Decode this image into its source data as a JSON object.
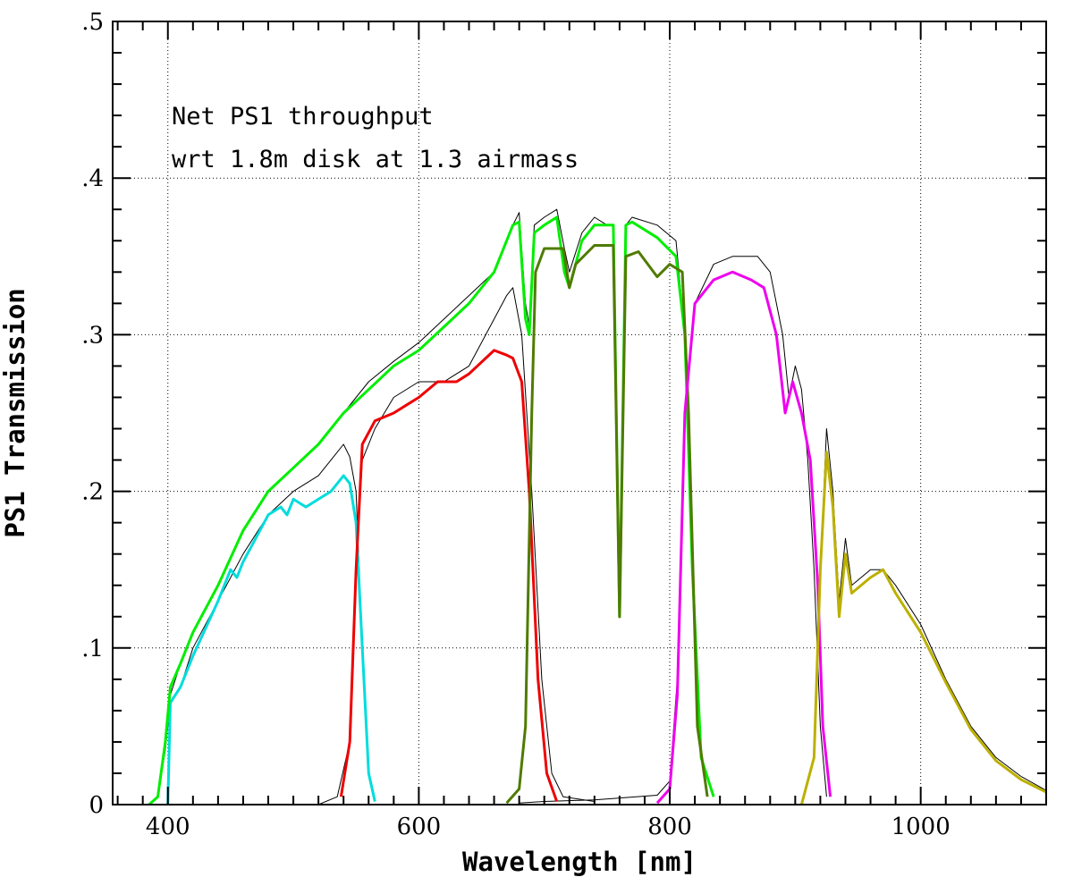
{
  "chart_data": {
    "type": "line",
    "xlabel": "Wavelength [nm]",
    "ylabel": "PS1 Transmission",
    "xlim": [
      356,
      1100
    ],
    "ylim": [
      0,
      0.5
    ],
    "x_ticks": [
      {
        "value": 400,
        "label": "400"
      },
      {
        "value": 600,
        "label": "600"
      },
      {
        "value": 800,
        "label": "800"
      },
      {
        "value": 1000,
        "label": "1000"
      }
    ],
    "y_ticks": [
      {
        "value": 0,
        "label": "0"
      },
      {
        "value": 0.1,
        "label": ".1"
      },
      {
        "value": 0.2,
        "label": ".2"
      },
      {
        "value": 0.3,
        "label": ".3"
      },
      {
        "value": 0.4,
        "label": ".4"
      },
      {
        "value": 0.5,
        "label": ".5"
      }
    ],
    "grid": true,
    "annotations": [
      "Net PS1 throughput",
      "wrt 1.8m disk at 1.3 airmass"
    ],
    "series": [
      {
        "color": "#000000",
        "width": 1,
        "points": [
          [
            385,
            0
          ],
          [
            392,
            0.005
          ],
          [
            398,
            0.04
          ],
          [
            402,
            0.07
          ],
          [
            410,
            0.09
          ],
          [
            420,
            0.11
          ],
          [
            440,
            0.14
          ],
          [
            460,
            0.175
          ],
          [
            480,
            0.2
          ],
          [
            500,
            0.215
          ],
          [
            520,
            0.23
          ],
          [
            540,
            0.25
          ],
          [
            560,
            0.27
          ],
          [
            580,
            0.283
          ],
          [
            600,
            0.295
          ],
          [
            620,
            0.31
          ],
          [
            640,
            0.325
          ],
          [
            660,
            0.34
          ],
          [
            675,
            0.37
          ],
          [
            680,
            0.378
          ],
          [
            685,
            0.32
          ],
          [
            688,
            0.305
          ],
          [
            692,
            0.37
          ],
          [
            700,
            0.375
          ],
          [
            710,
            0.38
          ],
          [
            716,
            0.355
          ],
          [
            720,
            0.34
          ],
          [
            730,
            0.365
          ],
          [
            740,
            0.375
          ],
          [
            750,
            0.37
          ],
          [
            755,
            0.37
          ],
          [
            760,
            0.12
          ],
          [
            765,
            0.37
          ],
          [
            770,
            0.375
          ],
          [
            790,
            0.37
          ],
          [
            805,
            0.36
          ],
          [
            812,
            0.3
          ],
          [
            818,
            0.15
          ],
          [
            825,
            0.03
          ],
          [
            835,
            0.005
          ]
        ]
      },
      {
        "color": "#000000",
        "width": 1,
        "points": [
          [
            385,
            0
          ],
          [
            392,
            0.005
          ],
          [
            398,
            0.035
          ],
          [
            402,
            0.065
          ],
          [
            410,
            0.075
          ],
          [
            420,
            0.1
          ],
          [
            440,
            0.13
          ],
          [
            460,
            0.16
          ],
          [
            480,
            0.185
          ],
          [
            500,
            0.2
          ],
          [
            520,
            0.21
          ],
          [
            540,
            0.23
          ],
          [
            545,
            0.222
          ],
          [
            550,
            0.2
          ],
          [
            555,
            0.1
          ],
          [
            560,
            0.02
          ],
          [
            565,
            0.002
          ]
        ]
      },
      {
        "color": "#000000",
        "width": 1,
        "points": [
          [
            520,
            0
          ],
          [
            535,
            0.005
          ],
          [
            545,
            0.04
          ],
          [
            550,
            0.15
          ],
          [
            555,
            0.22
          ],
          [
            565,
            0.24
          ],
          [
            580,
            0.26
          ],
          [
            600,
            0.27
          ],
          [
            620,
            0.27
          ],
          [
            640,
            0.28
          ],
          [
            660,
            0.31
          ],
          [
            670,
            0.325
          ],
          [
            675,
            0.33
          ],
          [
            682,
            0.3
          ],
          [
            690,
            0.2
          ],
          [
            698,
            0.08
          ],
          [
            706,
            0.02
          ],
          [
            715,
            0.005
          ],
          [
            740,
            0.002
          ]
        ]
      },
      {
        "color": "#000000",
        "width": 1,
        "points": [
          [
            680,
            0.001
          ],
          [
            700,
            0.002
          ],
          [
            740,
            0.003
          ],
          [
            790,
            0.006
          ],
          [
            800,
            0.015
          ],
          [
            806,
            0.08
          ],
          [
            812,
            0.25
          ],
          [
            820,
            0.32
          ],
          [
            835,
            0.345
          ],
          [
            850,
            0.35
          ],
          [
            870,
            0.35
          ],
          [
            880,
            0.34
          ],
          [
            890,
            0.3
          ],
          [
            895,
            0.26
          ],
          [
            900,
            0.28
          ],
          [
            905,
            0.265
          ],
          [
            910,
            0.22
          ],
          [
            915,
            0.15
          ],
          [
            920,
            0.05
          ],
          [
            925,
            0.005
          ]
        ]
      },
      {
        "color": "#000000",
        "width": 1,
        "points": [
          [
            905,
            0
          ],
          [
            915,
            0.03
          ],
          [
            920,
            0.15
          ],
          [
            925,
            0.24
          ],
          [
            930,
            0.2
          ],
          [
            935,
            0.13
          ],
          [
            940,
            0.17
          ],
          [
            945,
            0.14
          ],
          [
            960,
            0.15
          ],
          [
            970,
            0.15
          ],
          [
            980,
            0.14
          ],
          [
            1000,
            0.115
          ],
          [
            1020,
            0.08
          ],
          [
            1040,
            0.05
          ],
          [
            1060,
            0.03
          ],
          [
            1080,
            0.018
          ],
          [
            1100,
            0.009
          ]
        ]
      },
      {
        "color": "#00dcdc",
        "width": 3,
        "points": [
          [
            400,
            0
          ],
          [
            402,
            0.065
          ],
          [
            410,
            0.075
          ],
          [
            420,
            0.095
          ],
          [
            440,
            0.13
          ],
          [
            450,
            0.15
          ],
          [
            455,
            0.145
          ],
          [
            460,
            0.155
          ],
          [
            470,
            0.17
          ],
          [
            480,
            0.185
          ],
          [
            490,
            0.19
          ],
          [
            495,
            0.185
          ],
          [
            500,
            0.195
          ],
          [
            510,
            0.19
          ],
          [
            520,
            0.195
          ],
          [
            530,
            0.2
          ],
          [
            540,
            0.21
          ],
          [
            545,
            0.205
          ],
          [
            550,
            0.18
          ],
          [
            555,
            0.1
          ],
          [
            560,
            0.02
          ],
          [
            565,
            0.002
          ]
        ]
      },
      {
        "color": "#ee0000",
        "width": 3,
        "points": [
          [
            538,
            0.005
          ],
          [
            545,
            0.04
          ],
          [
            550,
            0.15
          ],
          [
            555,
            0.23
          ],
          [
            565,
            0.245
          ],
          [
            580,
            0.25
          ],
          [
            590,
            0.255
          ],
          [
            600,
            0.26
          ],
          [
            615,
            0.27
          ],
          [
            630,
            0.27
          ],
          [
            640,
            0.275
          ],
          [
            660,
            0.29
          ],
          [
            670,
            0.287
          ],
          [
            675,
            0.285
          ],
          [
            682,
            0.27
          ],
          [
            688,
            0.2
          ],
          [
            695,
            0.08
          ],
          [
            702,
            0.02
          ],
          [
            710,
            0.002
          ]
        ]
      },
      {
        "color": "#00ee00",
        "width": 3,
        "points": [
          [
            385,
            0
          ],
          [
            392,
            0.005
          ],
          [
            398,
            0.04
          ],
          [
            402,
            0.075
          ],
          [
            410,
            0.09
          ],
          [
            420,
            0.11
          ],
          [
            440,
            0.14
          ],
          [
            460,
            0.175
          ],
          [
            480,
            0.2
          ],
          [
            500,
            0.215
          ],
          [
            520,
            0.23
          ],
          [
            540,
            0.25
          ],
          [
            560,
            0.265
          ],
          [
            580,
            0.28
          ],
          [
            600,
            0.29
          ],
          [
            620,
            0.305
          ],
          [
            640,
            0.32
          ],
          [
            660,
            0.34
          ],
          [
            675,
            0.37
          ],
          [
            680,
            0.372
          ],
          [
            685,
            0.31
          ],
          [
            688,
            0.3
          ],
          [
            692,
            0.365
          ],
          [
            700,
            0.37
          ],
          [
            710,
            0.375
          ],
          [
            716,
            0.34
          ],
          [
            720,
            0.33
          ],
          [
            730,
            0.36
          ],
          [
            740,
            0.37
          ],
          [
            750,
            0.37
          ],
          [
            755,
            0.37
          ],
          [
            760,
            0.12
          ],
          [
            765,
            0.37
          ],
          [
            770,
            0.372
          ],
          [
            790,
            0.362
          ],
          [
            805,
            0.35
          ],
          [
            812,
            0.3
          ],
          [
            818,
            0.15
          ],
          [
            825,
            0.03
          ],
          [
            835,
            0.005
          ]
        ]
      },
      {
        "color": "#4f7b00",
        "width": 3,
        "points": [
          [
            670,
            0.001
          ],
          [
            680,
            0.01
          ],
          [
            685,
            0.05
          ],
          [
            690,
            0.25
          ],
          [
            693,
            0.34
          ],
          [
            700,
            0.355
          ],
          [
            715,
            0.355
          ],
          [
            720,
            0.33
          ],
          [
            725,
            0.345
          ],
          [
            740,
            0.357
          ],
          [
            755,
            0.357
          ],
          [
            760,
            0.12
          ],
          [
            765,
            0.35
          ],
          [
            775,
            0.353
          ],
          [
            790,
            0.337
          ],
          [
            800,
            0.345
          ],
          [
            810,
            0.34
          ],
          [
            815,
            0.25
          ],
          [
            822,
            0.05
          ],
          [
            830,
            0.005
          ]
        ]
      },
      {
        "color": "#ee00ee",
        "width": 3,
        "points": [
          [
            790,
            0.001
          ],
          [
            800,
            0.01
          ],
          [
            806,
            0.07
          ],
          [
            812,
            0.25
          ],
          [
            820,
            0.32
          ],
          [
            835,
            0.335
          ],
          [
            850,
            0.34
          ],
          [
            865,
            0.335
          ],
          [
            875,
            0.33
          ],
          [
            885,
            0.3
          ],
          [
            892,
            0.25
          ],
          [
            898,
            0.27
          ],
          [
            905,
            0.25
          ],
          [
            912,
            0.22
          ],
          [
            918,
            0.14
          ],
          [
            922,
            0.05
          ],
          [
            928,
            0.005
          ]
        ]
      },
      {
        "color": "#bcb000",
        "width": 3,
        "points": [
          [
            905,
            0
          ],
          [
            915,
            0.03
          ],
          [
            920,
            0.15
          ],
          [
            925,
            0.225
          ],
          [
            930,
            0.19
          ],
          [
            935,
            0.12
          ],
          [
            940,
            0.16
          ],
          [
            945,
            0.135
          ],
          [
            960,
            0.145
          ],
          [
            970,
            0.15
          ],
          [
            980,
            0.135
          ],
          [
            1000,
            0.11
          ],
          [
            1020,
            0.078
          ],
          [
            1040,
            0.048
          ],
          [
            1060,
            0.028
          ],
          [
            1080,
            0.016
          ],
          [
            1100,
            0.008
          ]
        ]
      }
    ]
  }
}
